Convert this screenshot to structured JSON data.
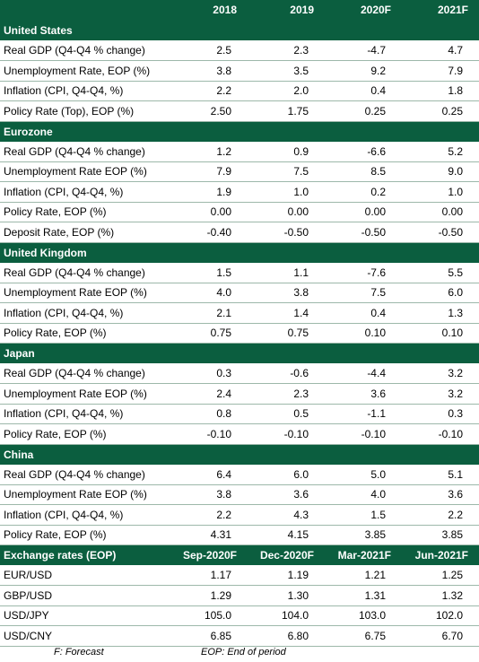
{
  "header": {
    "label": "",
    "years": [
      "2018",
      "2019",
      "2020F",
      "2021F"
    ]
  },
  "sections": [
    {
      "title": "United States",
      "rows": [
        {
          "label": "Real GDP (Q4-Q4 % change)",
          "values": [
            "2.5",
            "2.3",
            "-4.7",
            "4.7"
          ]
        },
        {
          "label": "Unemployment Rate, EOP (%)",
          "values": [
            "3.8",
            "3.5",
            "9.2",
            "7.9"
          ]
        },
        {
          "label": "Inflation (CPI, Q4-Q4, %)",
          "values": [
            "2.2",
            "2.0",
            "0.4",
            "1.8"
          ]
        },
        {
          "label": "Policy Rate (Top), EOP (%)",
          "values": [
            "2.50",
            "1.75",
            "0.25",
            "0.25"
          ]
        }
      ]
    },
    {
      "title": "Eurozone",
      "rows": [
        {
          "label": "Real GDP (Q4-Q4 % change)",
          "values": [
            "1.2",
            "0.9",
            "-6.6",
            "5.2"
          ]
        },
        {
          "label": "Unemployment Rate EOP (%)",
          "values": [
            "7.9",
            "7.5",
            "8.5",
            "9.0"
          ]
        },
        {
          "label": "Inflation (CPI, Q4-Q4, %)",
          "values": [
            "1.9",
            "1.0",
            "0.2",
            "1.0"
          ]
        },
        {
          "label": "Policy Rate, EOP (%)",
          "values": [
            "0.00",
            "0.00",
            "0.00",
            "0.00"
          ]
        },
        {
          "label": "Deposit Rate, EOP (%)",
          "values": [
            "-0.40",
            "-0.50",
            "-0.50",
            "-0.50"
          ]
        }
      ]
    },
    {
      "title": "United Kingdom",
      "rows": [
        {
          "label": "Real GDP (Q4-Q4 % change)",
          "values": [
            "1.5",
            "1.1",
            "-7.6",
            "5.5"
          ]
        },
        {
          "label": "Unemployment Rate EOP (%)",
          "values": [
            "4.0",
            "3.8",
            "7.5",
            "6.0"
          ]
        },
        {
          "label": "Inflation (CPI, Q4-Q4, %)",
          "values": [
            "2.1",
            "1.4",
            "0.4",
            "1.3"
          ]
        },
        {
          "label": "Policy Rate, EOP (%)",
          "values": [
            "0.75",
            "0.75",
            "0.10",
            "0.10"
          ]
        }
      ]
    },
    {
      "title": "Japan",
      "rows": [
        {
          "label": "Real GDP (Q4-Q4 % change)",
          "values": [
            "0.3",
            "-0.6",
            "-4.4",
            "3.2"
          ]
        },
        {
          "label": "Unemployment Rate EOP (%)",
          "values": [
            "2.4",
            "2.3",
            "3.6",
            "3.2"
          ]
        },
        {
          "label": "Inflation (CPI, Q4-Q4, %)",
          "values": [
            "0.8",
            "0.5",
            "-1.1",
            "0.3"
          ]
        },
        {
          "label": "Policy Rate, EOP (%)",
          "values": [
            "-0.10",
            "-0.10",
            "-0.10",
            "-0.10"
          ]
        }
      ]
    },
    {
      "title": "China",
      "rows": [
        {
          "label": "Real GDP (Q4-Q4 % change)",
          "values": [
            "6.4",
            "6.0",
            "5.0",
            "5.1"
          ]
        },
        {
          "label": "Unemployment Rate EOP (%)",
          "values": [
            "3.8",
            "3.6",
            "4.0",
            "3.6"
          ]
        },
        {
          "label": "Inflation (CPI, Q4-Q4, %)",
          "values": [
            "2.2",
            "4.3",
            "1.5",
            "2.2"
          ]
        },
        {
          "label": "Policy Rate, EOP (%)",
          "values": [
            "4.31",
            "4.15",
            "3.85",
            "3.85"
          ]
        }
      ]
    }
  ],
  "fx": {
    "title": "Exchange rates (EOP)",
    "periods": [
      "Sep-2020F",
      "Dec-2020F",
      "Mar-2021F",
      "Jun-2021F"
    ],
    "rows": [
      {
        "label": "EUR/USD",
        "values": [
          "1.17",
          "1.19",
          "1.21",
          "1.25"
        ]
      },
      {
        "label": "GBP/USD",
        "values": [
          "1.29",
          "1.30",
          "1.31",
          "1.32"
        ]
      },
      {
        "label": "USD/JPY",
        "values": [
          "105.0",
          "104.0",
          "103.0",
          "102.0"
        ]
      },
      {
        "label": "USD/CNY",
        "values": [
          "6.85",
          "6.80",
          "6.75",
          "6.70"
        ]
      }
    ]
  },
  "footnotes": {
    "forecast": "F: Forecast",
    "eop": "EOP: End of period"
  }
}
